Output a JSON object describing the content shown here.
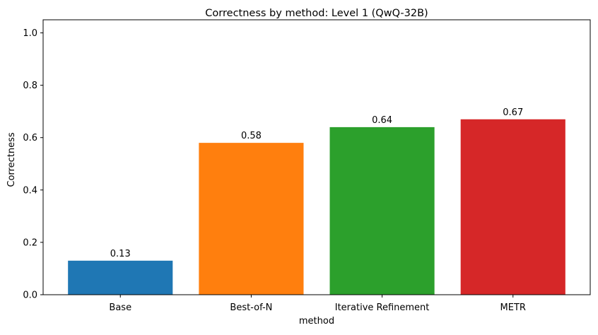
{
  "chart_data": {
    "type": "bar",
    "title": "Correctness by method: Level 1 (QwQ-32B)",
    "xlabel": "method",
    "ylabel": "Correctness",
    "categories": [
      "Base",
      "Best-of-N",
      "Iterative Refinement",
      "METR"
    ],
    "values": [
      0.13,
      0.58,
      0.64,
      0.67
    ],
    "value_labels": [
      "0.13",
      "0.58",
      "0.64",
      "0.67"
    ],
    "colors": [
      "#1f77b4",
      "#ff7f0e",
      "#2ca02c",
      "#d62728"
    ],
    "ylim": [
      0,
      1.05
    ],
    "yticks": [
      0.0,
      0.2,
      0.4,
      0.6,
      0.8,
      1.0
    ],
    "ytick_labels": [
      "0.0",
      "0.2",
      "0.4",
      "0.6",
      "0.8",
      "1.0"
    ],
    "grid": false,
    "legend": "none"
  }
}
